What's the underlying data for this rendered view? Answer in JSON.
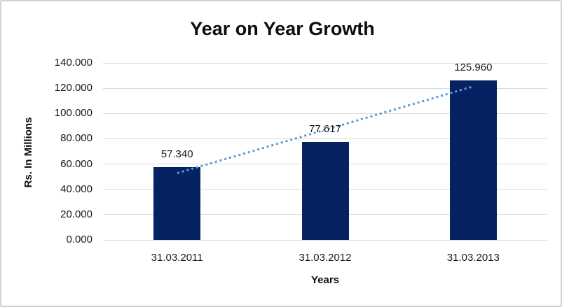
{
  "chart_data": {
    "type": "bar",
    "title": "Year on Year Growth",
    "xlabel": "Years",
    "ylabel": "Rs. In Millions",
    "categories": [
      "31.03.2011",
      "31.03.2012",
      "31.03.2013"
    ],
    "values": [
      57.34,
      77.617,
      125.96
    ],
    "value_labels": [
      "57.340",
      "77.617",
      "125.960"
    ],
    "yticks": [
      0,
      20,
      40,
      60,
      80,
      100,
      120,
      140
    ],
    "ytick_labels": [
      "0.000",
      "20.000",
      "40.000",
      "60.000",
      "80.000",
      "100.000",
      "120.000",
      "140.000"
    ],
    "ylim": [
      0,
      140
    ],
    "grid": true,
    "legend": "none",
    "bar_color": "#062262",
    "gridline_color": "#d9d9d9",
    "text_color": "#1a1a1a",
    "trendline": {
      "type": "linear",
      "style": "dotted",
      "color": "#5b9bd5",
      "start_value": 52.66,
      "end_value": 121.28
    }
  }
}
